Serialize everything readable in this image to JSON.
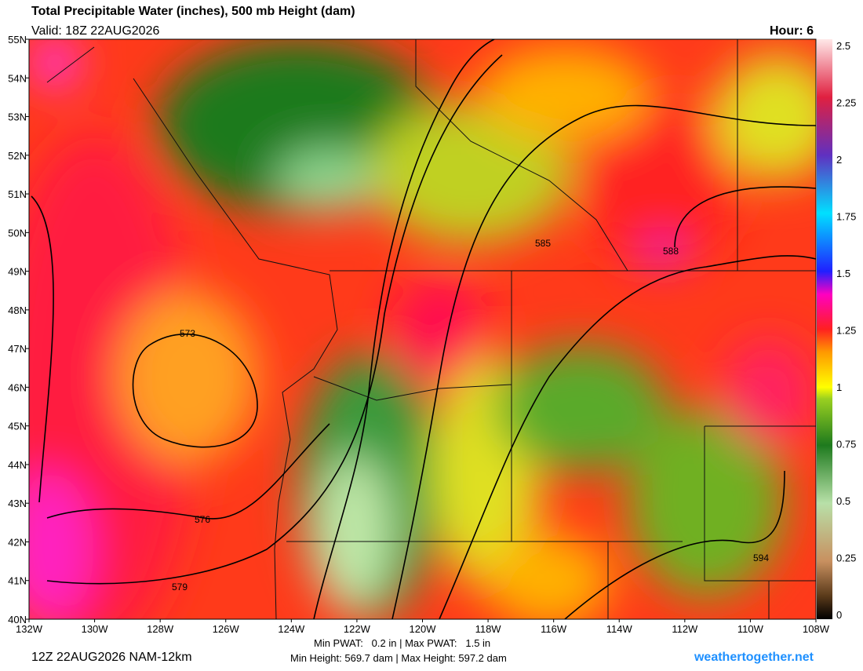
{
  "header": {
    "title": "Total Precipitable Water (inches), 500 mb Height (dam)",
    "valid": "Valid: 18Z 22AUG2026",
    "hour": "Hour: 6"
  },
  "lat_labels": [
    "55N",
    "54N",
    "53N",
    "52N",
    "51N",
    "50N",
    "49N",
    "48N",
    "47N",
    "46N",
    "45N",
    "44N",
    "43N",
    "42N",
    "41N",
    "40N"
  ],
  "lon_labels": [
    "132W",
    "130W",
    "128W",
    "126W",
    "124W",
    "122W",
    "120W",
    "118W",
    "116W",
    "114W",
    "112W",
    "110W",
    "108W"
  ],
  "colorbar": [
    2.5,
    2.25,
    2,
    1.75,
    1.5,
    1.25,
    1,
    0.75,
    0.5,
    0.25,
    0
  ],
  "contours": [
    "573",
    "576",
    "579",
    "585",
    "588",
    "594"
  ],
  "footer": {
    "run": "12Z 22AUG2026 NAM-12km",
    "pwat": "Min PWAT:   0.2 in | Max PWAT:   1.5 in",
    "height": "Min Height: 569.7 dam | Max Height: 597.2 dam",
    "site": "weathertogether.net"
  }
}
